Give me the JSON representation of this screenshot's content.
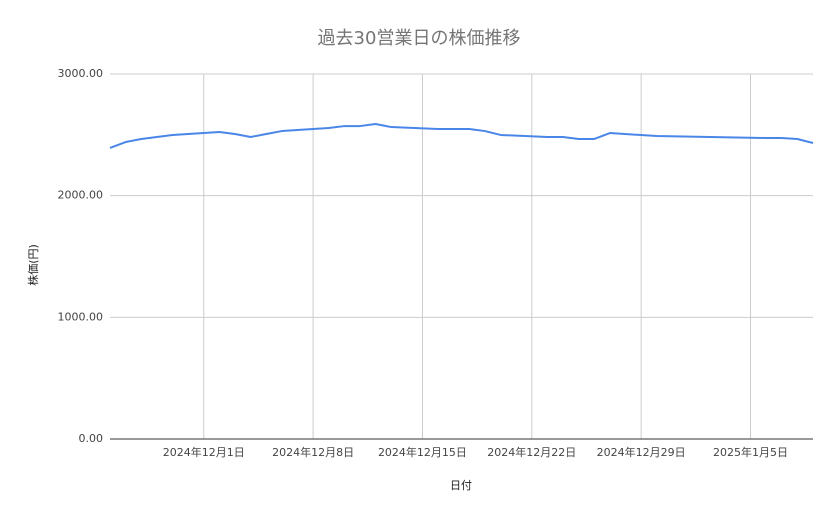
{
  "chart_data": {
    "type": "line",
    "title": "過去30営業日の株価推移",
    "x_label": "日付",
    "y_label": "株価(円)",
    "x": [
      "2024-11-25",
      "2024-11-26",
      "2024-11-27",
      "2024-11-28",
      "2024-11-29",
      "2024-12-02",
      "2024-12-03",
      "2024-12-04",
      "2024-12-05",
      "2024-12-06",
      "2024-12-09",
      "2024-12-10",
      "2024-12-11",
      "2024-12-12",
      "2024-12-13",
      "2024-12-16",
      "2024-12-17",
      "2024-12-18",
      "2024-12-19",
      "2024-12-20",
      "2024-12-23",
      "2024-12-24",
      "2024-12-25",
      "2024-12-26",
      "2024-12-27",
      "2024-12-30",
      "2025-01-06",
      "2025-01-07",
      "2025-01-08",
      "2025-01-09"
    ],
    "values": [
      2392,
      2441,
      2466,
      2482,
      2499,
      2523,
      2507,
      2482,
      2507,
      2531,
      2556,
      2572,
      2572,
      2589,
      2564,
      2548,
      2548,
      2548,
      2531,
      2499,
      2482,
      2482,
      2466,
      2466,
      2515,
      2490,
      2474,
      2474,
      2466,
      2433
    ],
    "color": "#4a86e8",
    "xlim": [
      "2024-11-25",
      "2025-01-09"
    ],
    "xticks": [
      {
        "value": "2024-12-01",
        "label": "2024年12月1日"
      },
      {
        "value": "2024-12-08",
        "label": "2024年12月8日"
      },
      {
        "value": "2024-12-15",
        "label": "2024年12月15日"
      },
      {
        "value": "2024-12-22",
        "label": "2024年12月22日"
      },
      {
        "value": "2024-12-29",
        "label": "2024年12月29日"
      },
      {
        "value": "2025-01-05",
        "label": "2025年1月5日"
      }
    ],
    "ylim": [
      0,
      3000
    ],
    "yticks": [
      {
        "value": 0,
        "label": "0.00"
      },
      {
        "value": 1000,
        "label": "1000.00"
      },
      {
        "value": 2000,
        "label": "2000.00"
      },
      {
        "value": 3000,
        "label": "3000.00"
      }
    ],
    "grid": true
  }
}
